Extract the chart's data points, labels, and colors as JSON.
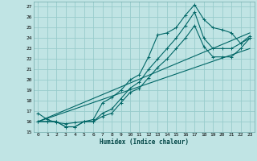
{
  "xlabel": "Humidex (Indice chaleur)",
  "bg_color": "#c0e4e4",
  "grid_color": "#98cccc",
  "line_color": "#006666",
  "xlim": [
    -0.5,
    23.5
  ],
  "ylim": [
    15,
    27.5
  ],
  "xticks": [
    0,
    1,
    2,
    3,
    4,
    5,
    6,
    7,
    8,
    9,
    10,
    11,
    12,
    13,
    14,
    15,
    16,
    17,
    18,
    19,
    20,
    21,
    22,
    23
  ],
  "yticks": [
    15,
    16,
    17,
    18,
    19,
    20,
    21,
    22,
    23,
    24,
    25,
    26,
    27
  ],
  "line1_x": [
    0,
    1,
    2,
    3,
    4,
    5,
    6,
    7,
    8,
    9,
    10,
    11,
    12,
    13,
    14,
    15,
    16,
    17,
    18,
    19,
    20,
    21,
    22,
    23
  ],
  "line1_y": [
    16.8,
    16.2,
    15.9,
    15.8,
    15.9,
    16.0,
    16.2,
    17.8,
    18.3,
    19.0,
    20.0,
    20.5,
    22.2,
    24.3,
    24.5,
    25.0,
    26.2,
    27.2,
    25.8,
    25.0,
    24.8,
    24.5,
    23.5,
    24.2
  ],
  "line2_x": [
    0,
    1,
    2,
    3,
    4,
    5,
    6,
    7,
    8,
    9,
    10,
    11,
    12,
    13,
    14,
    15,
    16,
    17,
    18,
    19,
    20,
    21,
    22,
    23
  ],
  "line2_y": [
    16.0,
    16.0,
    16.0,
    15.5,
    15.5,
    16.0,
    16.0,
    16.8,
    17.2,
    18.2,
    19.2,
    19.8,
    21.0,
    22.0,
    23.0,
    24.0,
    25.2,
    26.5,
    24.0,
    23.0,
    23.0,
    23.0,
    23.5,
    24.0
  ],
  "line3_x": [
    0,
    1,
    2,
    3,
    4,
    5,
    6,
    7,
    8,
    9,
    10,
    11,
    12,
    13,
    14,
    15,
    16,
    17,
    18,
    19,
    20,
    21,
    22,
    23
  ],
  "line3_y": [
    16.0,
    16.0,
    16.0,
    15.5,
    15.5,
    16.0,
    16.0,
    16.5,
    16.8,
    17.8,
    18.8,
    19.2,
    20.2,
    21.2,
    22.0,
    23.0,
    24.0,
    25.2,
    23.2,
    22.2,
    22.2,
    22.2,
    23.0,
    24.0
  ],
  "line4_x": [
    0,
    23
  ],
  "line4_y": [
    16.0,
    24.5
  ],
  "line5_x": [
    0,
    23
  ],
  "line5_y": [
    16.0,
    23.0
  ]
}
